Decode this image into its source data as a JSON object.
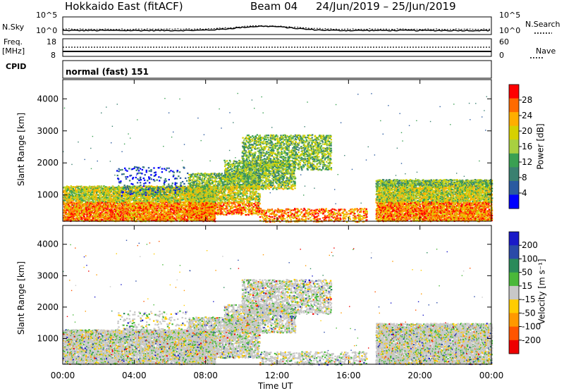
{
  "header": {
    "radar": "Hokkaido East (fitACF)",
    "beam": "Beam 04",
    "dates": "24/Jun/2019 – 25/Jun/2019"
  },
  "top_panels": {
    "nsky_label": "N.Sky",
    "nsky_ticks": [
      "10^5",
      "10^0"
    ],
    "nsearch_label": "N.Search",
    "nsearch_ticks": [
      "10^5",
      "10^0"
    ],
    "freq_label": "Freq.",
    "freq_unit": "[MHz]",
    "freq_ticks": [
      "18",
      "8"
    ],
    "nave_label": "Nave",
    "nave_ticks": [
      "60",
      "0"
    ],
    "cpid_label": "CPID",
    "cpid_value": "normal (fast) 151"
  },
  "chart_data": [
    {
      "type": "heatmap",
      "ylabel": "Slant Range [km]",
      "ylim": [
        180,
        4600
      ],
      "yticks": [
        "4000",
        "3000",
        "2000",
        "1000"
      ],
      "colorbar": {
        "label": "Power [dB]",
        "ticks": [
          "28",
          "24",
          "20",
          "16",
          "12",
          "8",
          "4"
        ],
        "colors": [
          "#ff0000",
          "#ff6a00",
          "#ffae00",
          "#d6d000",
          "#a8d040",
          "#3aa052",
          "#3a8070",
          "#2a5aa0",
          "#0000ff"
        ]
      }
    },
    {
      "type": "heatmap",
      "ylabel": "Slant Range [km]",
      "ylim": [
        180,
        4600
      ],
      "yticks": [
        "4000",
        "3000",
        "2000",
        "1000"
      ],
      "colorbar": {
        "label": "Velocity [m s⁻¹]",
        "ticks": [
          "200",
          "100",
          "50",
          "15",
          "-15",
          "-50",
          "-100",
          "-200"
        ],
        "colors": [
          "#1a1ac8",
          "#2a4aa8",
          "#2a8a5a",
          "#4ab83a",
          "#c8c8c8",
          "#ffcc00",
          "#ff9900",
          "#ff5500",
          "#ee0000"
        ]
      }
    }
  ],
  "xaxis": {
    "ticks": [
      "00:00",
      "04:00",
      "08:00",
      "12:00",
      "16:00",
      "20:00",
      "00:00"
    ],
    "label": "Time UT"
  }
}
